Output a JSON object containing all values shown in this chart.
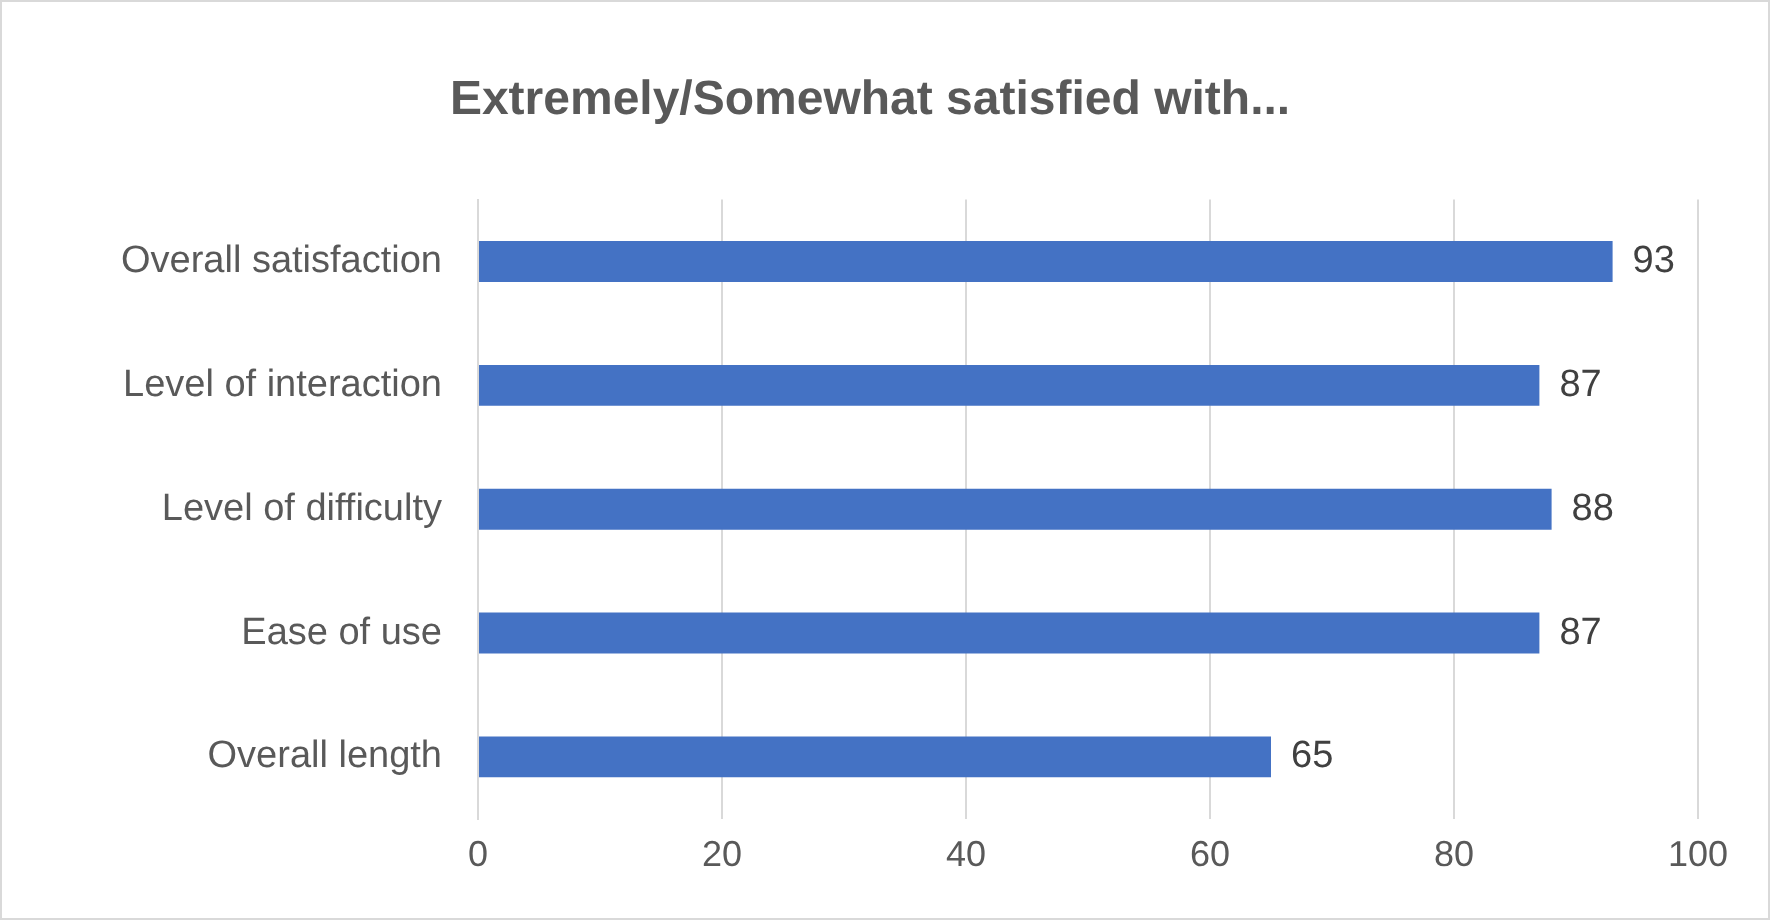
{
  "chart_data": {
    "type": "bar",
    "orientation": "horizontal",
    "title": "Extremely/Somewhat satisfied with...",
    "categories": [
      "Overall satisfaction",
      "Level of interaction",
      "Level of difficulty",
      "Ease of use",
      "Overall length"
    ],
    "values": [
      93,
      87,
      88,
      87,
      65
    ],
    "color": "#4472c4",
    "xlim": [
      0,
      100
    ],
    "xticks": [
      0,
      20,
      40,
      60,
      80,
      100
    ],
    "grid": "x",
    "data_labels": true
  }
}
